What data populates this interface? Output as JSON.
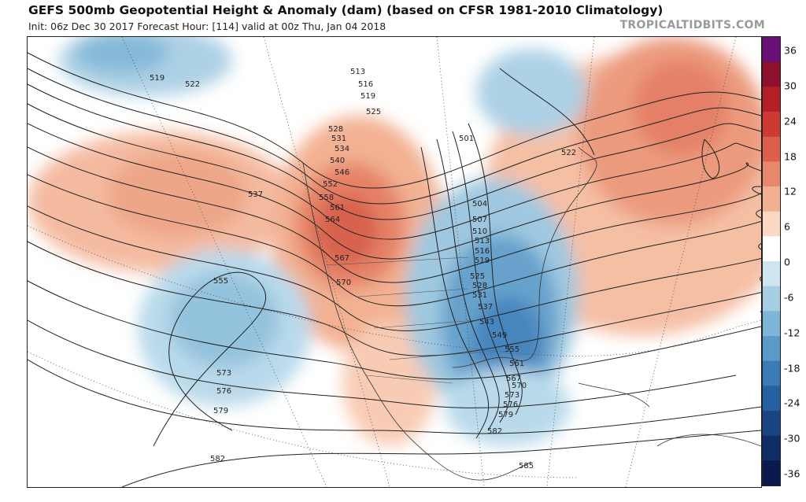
{
  "header": {
    "title": "GEFS 500mb Geopotential Height & Anomaly (dam) (based on CFSR 1981-2010 Climatology)",
    "subtitle": "Init: 06z Dec 30 2017   Forecast Hour: [114]   valid at 00z Thu, Jan 04 2018",
    "credit": "TROPICALTIDBITS.COM"
  },
  "colorbar": {
    "ticks": [
      "36",
      "30",
      "24",
      "18",
      "12",
      "6",
      "0",
      "-6",
      "-12",
      "-18",
      "-24",
      "-30",
      "-36"
    ],
    "colors": [
      "#6a0f75",
      "#8e0f2e",
      "#b32027",
      "#cc3a33",
      "#db5f49",
      "#e8876c",
      "#f2b093",
      "#fad8c4",
      "#ffffff",
      "#cfe6f1",
      "#a6cfe4",
      "#7fb5d7",
      "#5a9ac8",
      "#3a7cb8",
      "#2560a2",
      "#1a4585",
      "#112d68",
      "#0a1a4e"
    ]
  },
  "map": {
    "contour_labels": [
      "513",
      "516",
      "519",
      "522",
      "525",
      "528",
      "531",
      "534",
      "537",
      "540",
      "543",
      "546",
      "549",
      "552",
      "555",
      "558",
      "561",
      "564",
      "567",
      "570",
      "573",
      "576",
      "579",
      "582",
      "585",
      "501",
      "504",
      "507",
      "510"
    ]
  }
}
